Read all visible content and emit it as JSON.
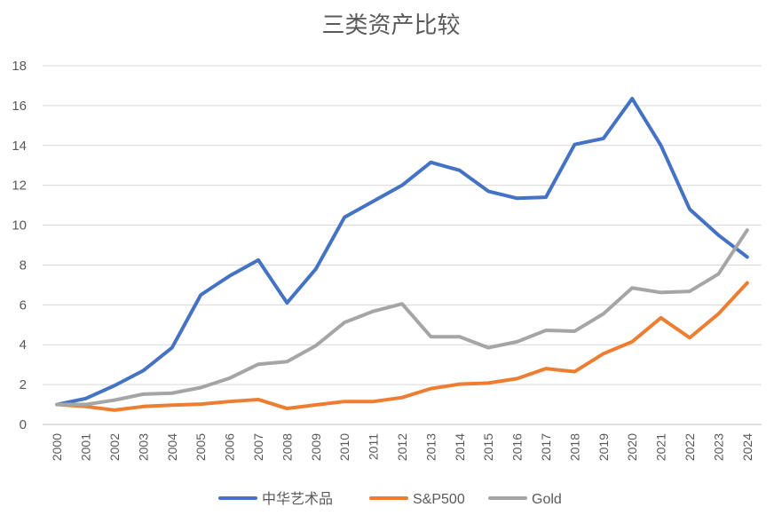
{
  "chart_data": {
    "type": "line",
    "title": "三类资产比较",
    "xlabel": "",
    "ylabel": "",
    "ylim": [
      0,
      18
    ],
    "yticks": [
      0,
      2,
      4,
      6,
      8,
      10,
      12,
      14,
      16,
      18
    ],
    "grid": true,
    "legend_position": "bottom",
    "categories": [
      "2000",
      "2001",
      "2002",
      "2003",
      "2004",
      "2005",
      "2006",
      "2007",
      "2008",
      "2009",
      "2010",
      "2011",
      "2012",
      "2013",
      "2014",
      "2015",
      "2016",
      "2017",
      "2018",
      "2019",
      "2020",
      "2021",
      "2022",
      "2023",
      "2024"
    ],
    "series": [
      {
        "name": "中华艺术品",
        "color": "#4472C4",
        "values": [
          1.0,
          1.3,
          1.95,
          2.7,
          3.85,
          6.5,
          7.45,
          8.25,
          6.1,
          7.8,
          10.4,
          11.2,
          12.0,
          13.15,
          12.75,
          11.7,
          11.35,
          11.4,
          14.05,
          14.35,
          16.35,
          14.0,
          10.8,
          9.5,
          8.4
        ]
      },
      {
        "name": "S&P500",
        "color": "#ED7D31",
        "values": [
          1.0,
          0.9,
          0.72,
          0.9,
          0.97,
          1.02,
          1.15,
          1.25,
          0.8,
          0.98,
          1.15,
          1.15,
          1.35,
          1.8,
          2.02,
          2.08,
          2.3,
          2.8,
          2.65,
          3.55,
          4.15,
          5.35,
          4.35,
          5.55,
          7.1
        ]
      },
      {
        "name": "Gold",
        "color": "#A5A5A5",
        "values": [
          1.0,
          1.0,
          1.22,
          1.52,
          1.57,
          1.85,
          2.32,
          3.02,
          3.15,
          3.95,
          5.12,
          5.68,
          6.05,
          4.4,
          4.4,
          3.85,
          4.15,
          4.72,
          4.68,
          5.55,
          6.85,
          6.62,
          6.68,
          7.55,
          9.75
        ]
      }
    ]
  }
}
